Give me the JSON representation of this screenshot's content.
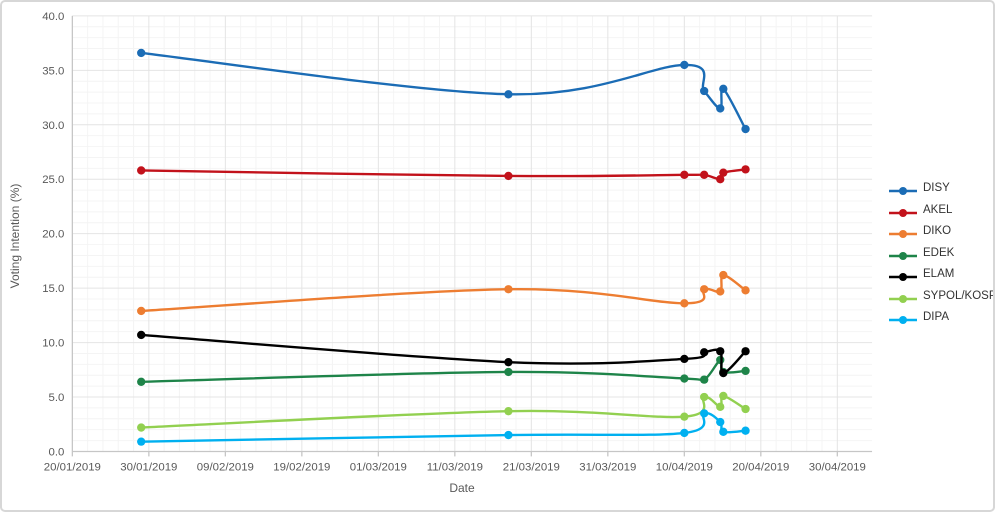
{
  "chart_data": {
    "type": "line",
    "title": "",
    "xlabel": "Date",
    "ylabel": "Voting Intention (%)",
    "legend_position": "right",
    "grid": "major-and-minor",
    "ylim": [
      0,
      40
    ],
    "y_ticks": [
      0,
      5,
      10,
      15,
      20,
      25,
      30,
      35,
      40
    ],
    "y_tick_labels": [
      "0.0",
      "5.0",
      "10.0",
      "15.0",
      "20.0",
      "25.0",
      "30.0",
      "35.0",
      "40.0"
    ],
    "x_tick_labels": [
      "20/01/2019",
      "30/01/2019",
      "09/02/2019",
      "19/02/2019",
      "01/03/2019",
      "11/03/2019",
      "21/03/2019",
      "31/03/2019",
      "10/04/2019",
      "20/04/2019",
      "30/04/2019"
    ],
    "x_tick_days": [
      0,
      10,
      20,
      30,
      40,
      50,
      60,
      70,
      80,
      90,
      100
    ],
    "x_dates": [
      "29/01/2019",
      "18/03/2019",
      "10/04/2019",
      "12/04/2019",
      "14/04/2019",
      "15/04/2019",
      "17/04/2019"
    ],
    "x_days": [
      9,
      57,
      80,
      82.6,
      84.7,
      85.1,
      88
    ],
    "series": [
      {
        "name": "DISY",
        "color": "#1B6CB5",
        "values": [
          36.6,
          32.8,
          35.5,
          33.1,
          31.5,
          33.3,
          29.6
        ]
      },
      {
        "name": "AKEL",
        "color": "#C2121B",
        "values": [
          25.8,
          25.3,
          25.4,
          25.4,
          25.0,
          25.6,
          25.9
        ]
      },
      {
        "name": "DIKO",
        "color": "#ED7D31",
        "values": [
          12.9,
          14.9,
          13.6,
          14.9,
          14.7,
          16.2,
          14.8
        ]
      },
      {
        "name": "EDEK",
        "color": "#1E8449",
        "values": [
          6.4,
          7.3,
          6.7,
          6.6,
          8.4,
          7.3,
          7.4
        ]
      },
      {
        "name": "ELAM",
        "color": "#000000",
        "values": [
          10.7,
          8.2,
          8.5,
          9.1,
          9.2,
          7.2,
          9.2
        ]
      },
      {
        "name": "SYPOL/KOSP",
        "color": "#92D050",
        "values": [
          2.2,
          3.7,
          3.2,
          5.0,
          4.1,
          5.1,
          3.9
        ]
      },
      {
        "name": "DIPA",
        "color": "#00B0F0",
        "values": [
          0.9,
          1.5,
          1.7,
          3.5,
          2.7,
          1.8,
          1.9
        ]
      }
    ],
    "colors": {
      "grid_major": "#e4e4e4",
      "grid_minor": "#f4f4f4",
      "axis_line": "#c6c6c6",
      "axis_text": "#595959"
    }
  }
}
